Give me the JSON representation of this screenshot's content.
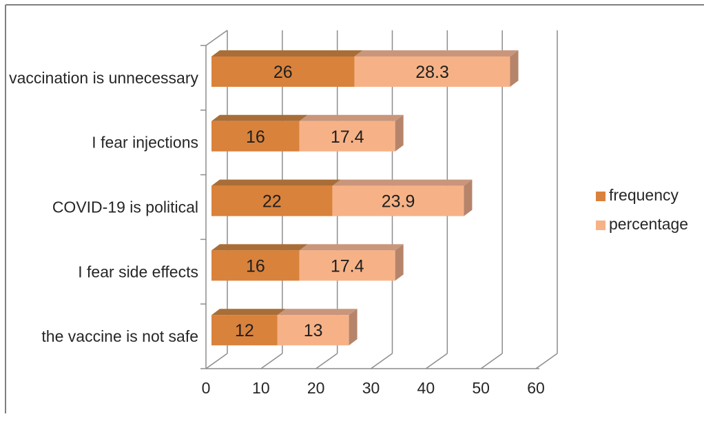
{
  "chart_data": {
    "type": "bar",
    "orientation": "horizontal",
    "stacked": true,
    "style": "3d",
    "title": "",
    "xlabel": "",
    "ylabel": "",
    "categories": [
      "vaccination is unnecessary",
      "I fear injections",
      "COVID-19 is political",
      "I fear side effects",
      "the vaccine is not safe"
    ],
    "series": [
      {
        "name": "frequency",
        "values": [
          26,
          16,
          22,
          16,
          12
        ],
        "color": "#D9823C",
        "top_color": "#A96E38",
        "side_color": "#9C6230"
      },
      {
        "name": "percentage",
        "values": [
          28.3,
          17.4,
          23.9,
          17.4,
          13
        ],
        "color": "#F6B286",
        "top_color": "#C9967B",
        "side_color": "#B5846B"
      }
    ],
    "xlim": [
      0,
      60
    ],
    "xticks": [
      0,
      10,
      20,
      30,
      40,
      50,
      60
    ],
    "grid": true,
    "data_labels": "inside-center",
    "legend_position": "right",
    "legend": [
      "frequency",
      "percentage"
    ],
    "colors": {
      "gridline": "#8C8C8C",
      "axis": "#8C8C8C",
      "text": "#262626",
      "label_text": "#1F1F1F",
      "border": "#7F7F7F",
      "background": "#FFFFFF"
    }
  }
}
